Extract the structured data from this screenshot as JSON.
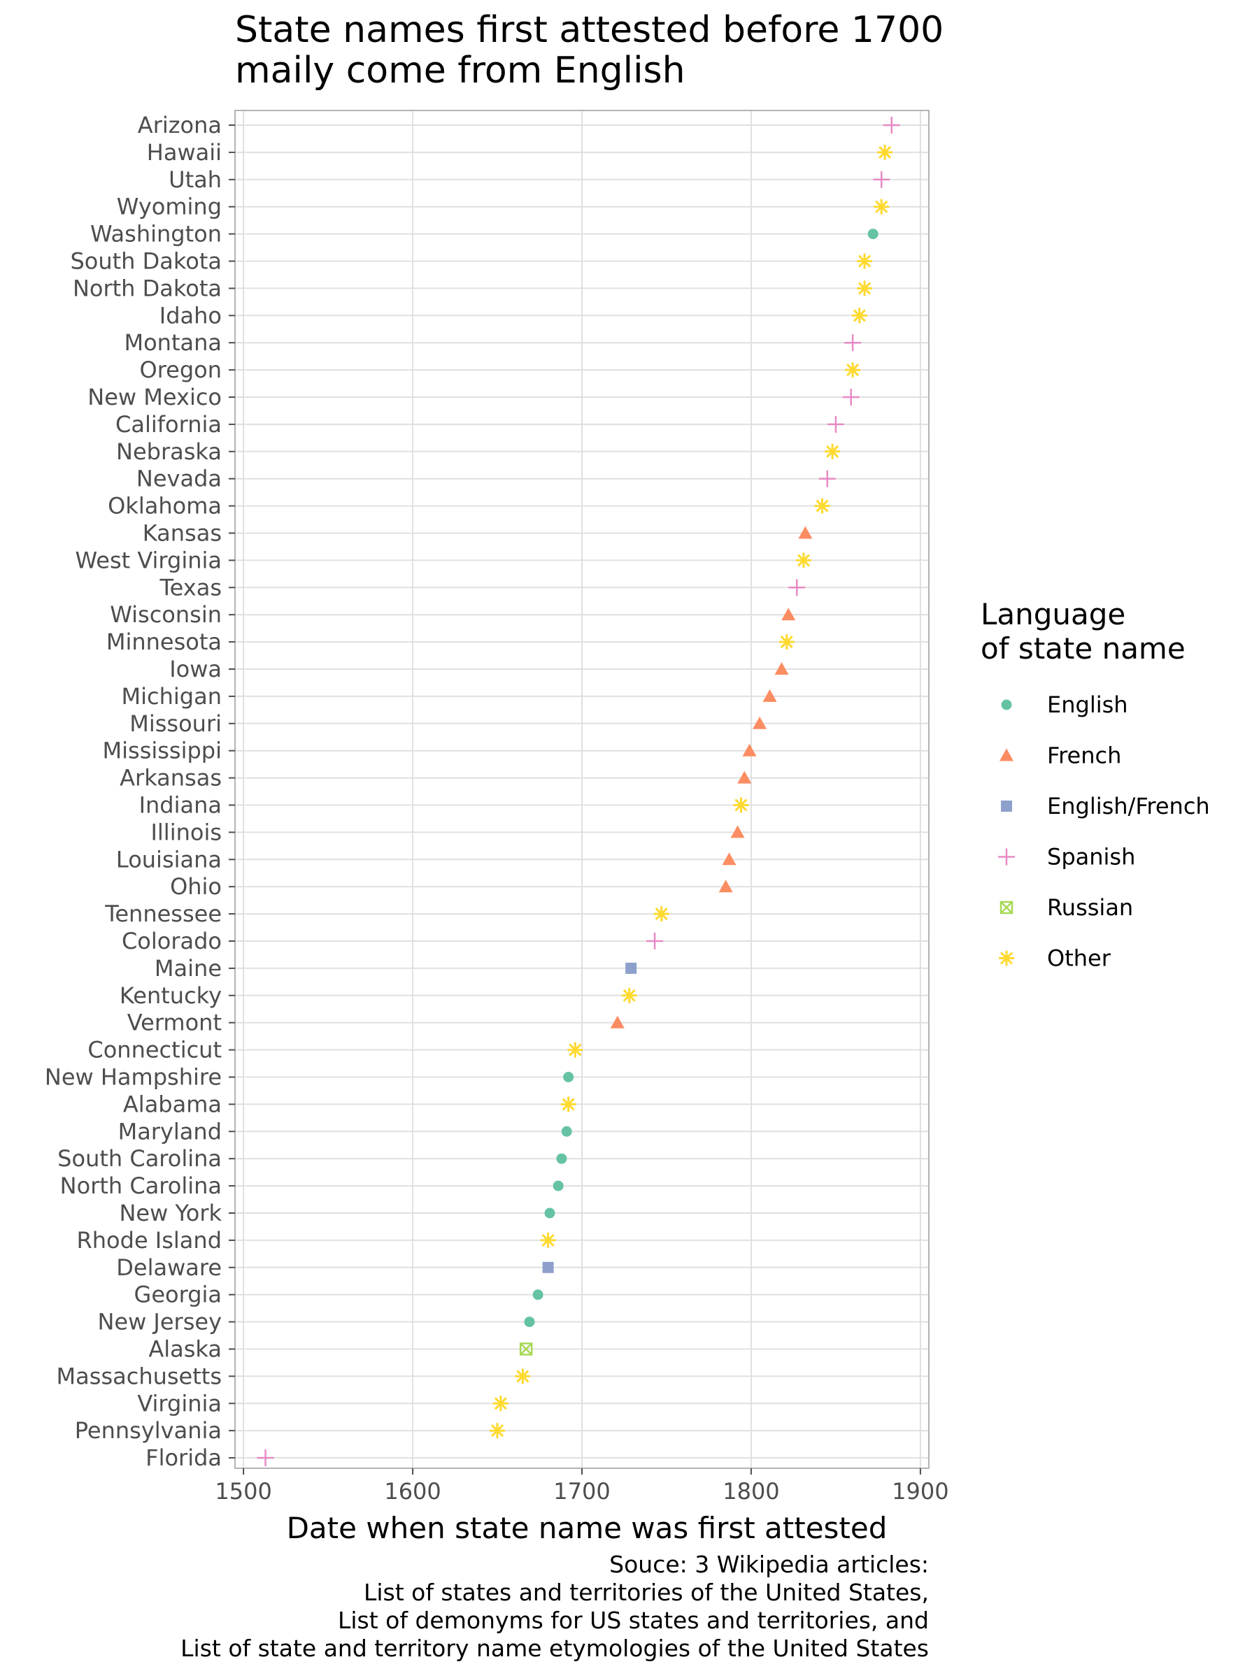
{
  "chart_data": {
    "type": "scatter",
    "title": [
      "State names first attested before 1700",
      "maily come from English"
    ],
    "xlabel": "Date when state name was first attested",
    "ylabel": "",
    "xlim": [
      1495,
      1905
    ],
    "xticks": [
      1500,
      1600,
      1700,
      1800,
      1900
    ],
    "grid": true,
    "legend": {
      "title": [
        "Language",
        "of state name"
      ],
      "placement": "right",
      "entries": [
        {
          "name": "English",
          "color": "#66c2a5",
          "shape": "circle"
        },
        {
          "name": "French",
          "color": "#fc8d62",
          "shape": "triangle"
        },
        {
          "name": "English/French",
          "color": "#8da0cb",
          "shape": "square"
        },
        {
          "name": "Spanish",
          "color": "#e78ac3",
          "shape": "plus"
        },
        {
          "name": "Russian",
          "color": "#a6d854",
          "shape": "boxcross"
        },
        {
          "name": "Other",
          "color": "#ffd92f",
          "shape": "asterisk"
        }
      ]
    },
    "points": [
      {
        "state": "Arizona",
        "year": 1883,
        "language": "Spanish"
      },
      {
        "state": "Hawaii",
        "year": 1879,
        "language": "Other"
      },
      {
        "state": "Utah",
        "year": 1877,
        "language": "Spanish"
      },
      {
        "state": "Wyoming",
        "year": 1877,
        "language": "Other"
      },
      {
        "state": "Washington",
        "year": 1872,
        "language": "English"
      },
      {
        "state": "South Dakota",
        "year": 1867,
        "language": "Other"
      },
      {
        "state": "North Dakota",
        "year": 1867,
        "language": "Other"
      },
      {
        "state": "Idaho",
        "year": 1864,
        "language": "Other"
      },
      {
        "state": "Montana",
        "year": 1860,
        "language": "Spanish"
      },
      {
        "state": "Oregon",
        "year": 1860,
        "language": "Other"
      },
      {
        "state": "New Mexico",
        "year": 1859,
        "language": "Spanish"
      },
      {
        "state": "California",
        "year": 1850,
        "language": "Spanish"
      },
      {
        "state": "Nebraska",
        "year": 1848,
        "language": "Other"
      },
      {
        "state": "Nevada",
        "year": 1845,
        "language": "Spanish"
      },
      {
        "state": "Oklahoma",
        "year": 1842,
        "language": "Other"
      },
      {
        "state": "Kansas",
        "year": 1832,
        "language": "French"
      },
      {
        "state": "West Virginia",
        "year": 1831,
        "language": "Other"
      },
      {
        "state": "Texas",
        "year": 1827,
        "language": "Spanish"
      },
      {
        "state": "Wisconsin",
        "year": 1822,
        "language": "French"
      },
      {
        "state": "Minnesota",
        "year": 1821,
        "language": "Other"
      },
      {
        "state": "Iowa",
        "year": 1818,
        "language": "French"
      },
      {
        "state": "Michigan",
        "year": 1811,
        "language": "French"
      },
      {
        "state": "Missouri",
        "year": 1805,
        "language": "French"
      },
      {
        "state": "Mississippi",
        "year": 1799,
        "language": "French"
      },
      {
        "state": "Arkansas",
        "year": 1796,
        "language": "French"
      },
      {
        "state": "Indiana",
        "year": 1794,
        "language": "Other"
      },
      {
        "state": "Illinois",
        "year": 1792,
        "language": "French"
      },
      {
        "state": "Louisiana",
        "year": 1787,
        "language": "French"
      },
      {
        "state": "Ohio",
        "year": 1785,
        "language": "French"
      },
      {
        "state": "Tennessee",
        "year": 1747,
        "language": "Other"
      },
      {
        "state": "Colorado",
        "year": 1743,
        "language": "Spanish"
      },
      {
        "state": "Maine",
        "year": 1729,
        "language": "English/French"
      },
      {
        "state": "Kentucky",
        "year": 1728,
        "language": "Other"
      },
      {
        "state": "Vermont",
        "year": 1721,
        "language": "French"
      },
      {
        "state": "Connecticut",
        "year": 1696,
        "language": "Other"
      },
      {
        "state": "New Hampshire",
        "year": 1692,
        "language": "English"
      },
      {
        "state": "Alabama",
        "year": 1692,
        "language": "Other"
      },
      {
        "state": "Maryland",
        "year": 1691,
        "language": "English"
      },
      {
        "state": "South Carolina",
        "year": 1688,
        "language": "English"
      },
      {
        "state": "North Carolina",
        "year": 1686,
        "language": "English"
      },
      {
        "state": "New York",
        "year": 1681,
        "language": "English"
      },
      {
        "state": "Rhode Island",
        "year": 1680,
        "language": "Other"
      },
      {
        "state": "Delaware",
        "year": 1680,
        "language": "English/French"
      },
      {
        "state": "Georgia",
        "year": 1674,
        "language": "English"
      },
      {
        "state": "New Jersey",
        "year": 1669,
        "language": "English"
      },
      {
        "state": "Alaska",
        "year": 1667,
        "language": "Russian"
      },
      {
        "state": "Massachusetts",
        "year": 1665,
        "language": "Other"
      },
      {
        "state": "Virginia",
        "year": 1652,
        "language": "Other"
      },
      {
        "state": "Pennsylvania",
        "year": 1650,
        "language": "Other"
      },
      {
        "state": "Florida",
        "year": 1513,
        "language": "Spanish"
      }
    ],
    "caption": [
      "Souce: 3 Wikipedia articles:",
      "List of states and territories of the United States,",
      "List of demonyms for US states and territories, and",
      "List of state and territory name etymologies of the United States"
    ]
  }
}
